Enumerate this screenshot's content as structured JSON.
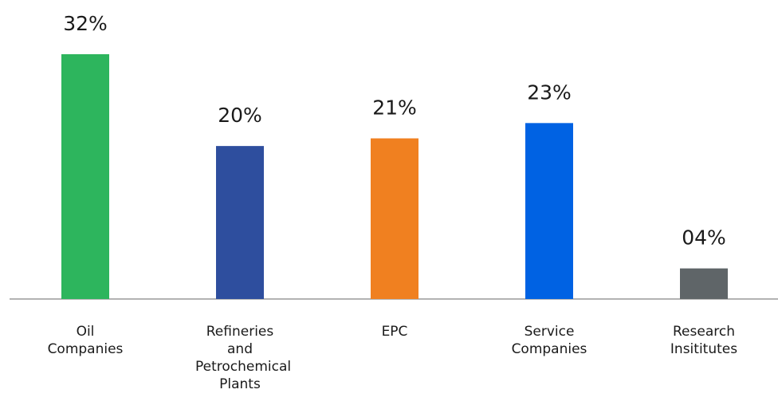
{
  "chart_data": {
    "type": "bar",
    "categories": [
      "Oil Companies",
      "Refineries and Petrochemical Plants",
      "EPC",
      "Service Companies",
      "Research Insititutes"
    ],
    "values": [
      32,
      20,
      21,
      23,
      4
    ],
    "value_labels": [
      "32%",
      "20%",
      "21%",
      "23%",
      "04%"
    ],
    "colors": [
      "#2db55d",
      "#2e4e9e",
      "#f08020",
      "#0062e3",
      "#5f6568"
    ]
  }
}
